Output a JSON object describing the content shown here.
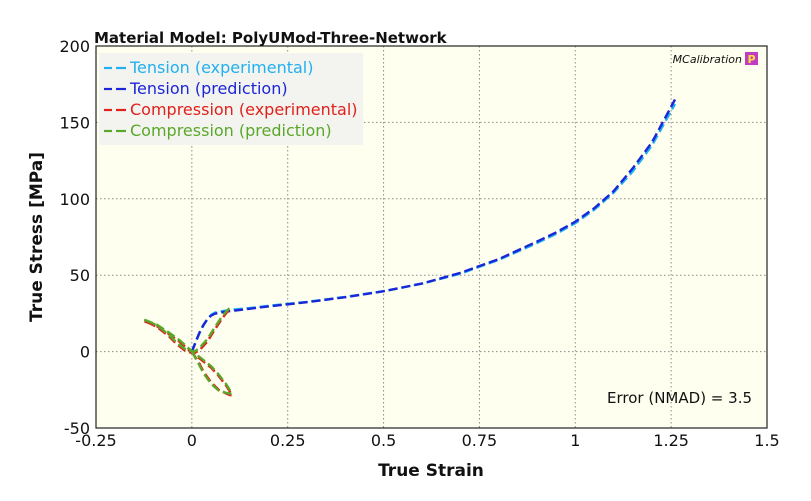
{
  "badge": {
    "text": "MCalibration",
    "icon": "P",
    "icon_color": "#c23cc3"
  },
  "annotation": {
    "error_text": "Error (NMAD) = 3.5"
  },
  "colors": {
    "plot_background": "#fffff0",
    "legend_background": "#f3f3ef",
    "grid": "#8a8a8a"
  },
  "chart_data": {
    "type": "line",
    "title": "Material Model: PolyUMod-Three-Network",
    "xlabel": "True Strain",
    "ylabel": "True Stress [MPa]",
    "xlim": [
      -0.25,
      1.5
    ],
    "ylim": [
      -50,
      200
    ],
    "xticks": [
      -0.25,
      0,
      0.25,
      0.5,
      0.75,
      1,
      1.25,
      1.5
    ],
    "xtick_labels": [
      "-0.25",
      "0",
      "0.25",
      "0.5",
      "0.75",
      "1",
      "1.25",
      "1.5"
    ],
    "yticks": [
      -50,
      0,
      50,
      100,
      150,
      200
    ],
    "ytick_labels": [
      "-50",
      "0",
      "50",
      "100",
      "150",
      "200"
    ],
    "grid": true,
    "legend_position": "top-left",
    "series": [
      {
        "name": "Tension (experimental)",
        "color": "#21b0f0",
        "style": "dashed",
        "x": [
          0,
          0.01,
          0.02,
          0.03,
          0.04,
          0.05,
          0.06,
          0.08,
          0.1,
          0.15,
          0.2,
          0.3,
          0.4,
          0.5,
          0.6,
          0.7,
          0.8,
          0.9,
          0.95,
          1.0,
          1.05,
          1.1,
          1.15,
          1.2,
          1.26
        ],
        "y": [
          0,
          6,
          12,
          17,
          21,
          24,
          25.5,
          26.5,
          27.3,
          28.5,
          30,
          32.5,
          35.8,
          39.5,
          44.5,
          51,
          60,
          71,
          77,
          84,
          93,
          104,
          118,
          135,
          162
        ]
      },
      {
        "name": "Tension (prediction)",
        "color": "#1b26d6",
        "style": "dashed",
        "x": [
          0,
          0.01,
          0.02,
          0.03,
          0.04,
          0.05,
          0.06,
          0.08,
          0.1,
          0.15,
          0.2,
          0.3,
          0.4,
          0.5,
          0.6,
          0.7,
          0.8,
          0.9,
          0.95,
          1.0,
          1.05,
          1.1,
          1.15,
          1.2,
          1.26
        ],
        "y": [
          0,
          6.5,
          12.5,
          17.5,
          21,
          23.5,
          24.8,
          25.8,
          26.5,
          28,
          29.6,
          32.3,
          35.6,
          39.5,
          44.5,
          51.5,
          60.5,
          72,
          78,
          85,
          94,
          105,
          120,
          137,
          165
        ]
      },
      {
        "name": "Compression (experimental)",
        "color": "#e0211c",
        "style": "dashed",
        "x": [
          0,
          0.01,
          0.02,
          0.03,
          0.05,
          0.07,
          0.09,
          0.1,
          0.105,
          0.1,
          0.09,
          0.07,
          0.05,
          0.03,
          0.01,
          -0.01,
          -0.03,
          -0.06,
          -0.09,
          -0.12,
          -0.125,
          -0.11,
          -0.09,
          -0.06,
          -0.04,
          -0.02,
          0,
          0.01,
          0.02,
          0.04,
          0.06,
          0.08,
          0.1
        ],
        "y": [
          0,
          -4,
          -8,
          -13,
          -20,
          -25,
          -27.5,
          -28.5,
          -28.6,
          -26.5,
          -22.5,
          -16,
          -10.5,
          -6.5,
          -2.5,
          1.5,
          6,
          11.5,
          16.5,
          19.5,
          19.8,
          18.5,
          16,
          10,
          5,
          1,
          -1,
          -0.5,
          1,
          6.5,
          14.5,
          22,
          28.5
        ]
      },
      {
        "name": "Compression (prediction)",
        "color": "#5aa82a",
        "style": "dashed",
        "x": [
          0,
          0.01,
          0.02,
          0.03,
          0.05,
          0.07,
          0.09,
          0.1,
          0.105,
          0.1,
          0.09,
          0.07,
          0.05,
          0.03,
          0.01,
          -0.01,
          -0.03,
          -0.06,
          -0.09,
          -0.12,
          -0.125,
          -0.11,
          -0.09,
          -0.06,
          -0.04,
          -0.02,
          0,
          0.01,
          0.02,
          0.04,
          0.06,
          0.08,
          0.1
        ],
        "y": [
          0,
          -4.5,
          -9,
          -14,
          -21,
          -25.5,
          -27,
          -27.5,
          -27.3,
          -25.5,
          -21.5,
          -15,
          -9.5,
          -5.5,
          -1.5,
          2.5,
          7,
          12.5,
          17.5,
          20.5,
          20.8,
          19.5,
          17,
          11,
          6,
          2,
          0,
          0.5,
          2.5,
          8,
          16,
          23.5,
          29
        ]
      }
    ]
  }
}
